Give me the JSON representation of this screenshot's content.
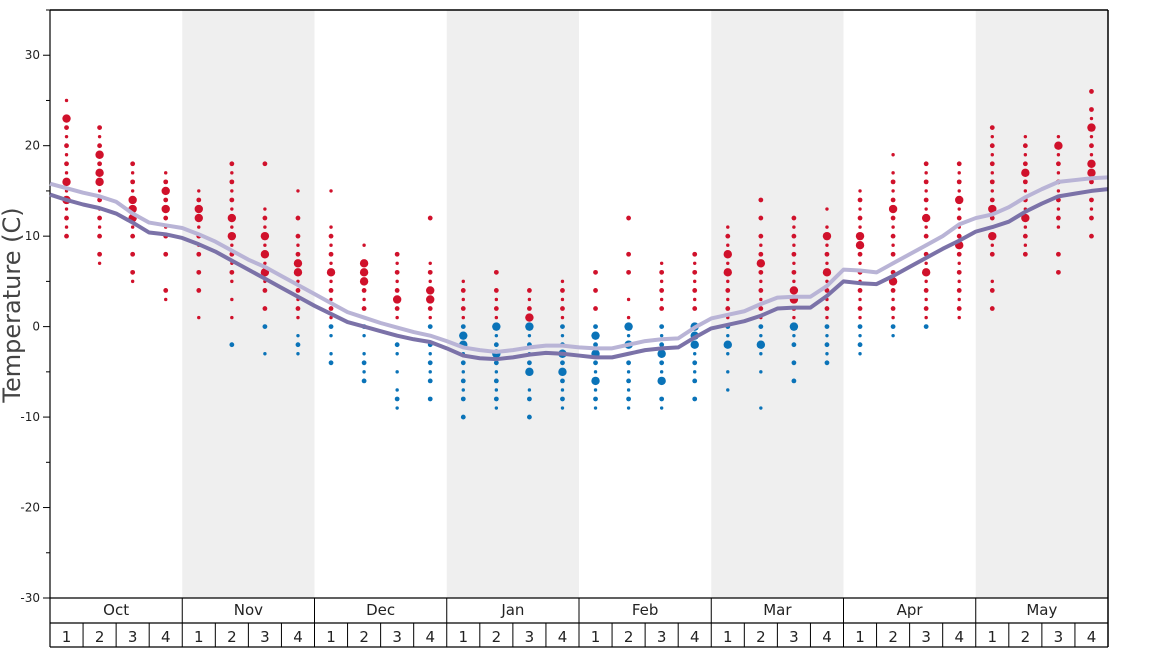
{
  "chart_data": {
    "type": "scatter",
    "ylabel": "Temperature (C)",
    "ylim": [
      -30,
      35
    ],
    "yticks": [
      "30",
      "20",
      "10",
      "0",
      "-10",
      "-20",
      "-30"
    ],
    "months": [
      "Oct",
      "Nov",
      "Dec",
      "Jan",
      "Feb",
      "Mar",
      "Apr",
      "May"
    ],
    "weeks": [
      "1",
      "2",
      "3",
      "4"
    ],
    "alternate_month_shading": true,
    "colors": {
      "warm": "#d0112b",
      "cold": "#0a73b8",
      "line_light": "#b9b4d6",
      "line_dark": "#7b72a8",
      "shade": "#efefef"
    },
    "series": [
      {
        "name": "",
        "x": [
          0.5,
          1,
          1.5,
          2,
          2.5,
          3,
          3.5,
          4,
          4.5,
          5,
          5.5,
          6,
          6.5,
          7,
          7.5,
          8,
          8.5,
          9,
          9.5,
          10,
          10.5,
          11,
          11.5,
          12,
          12.5,
          13,
          13.5,
          14,
          14.5,
          15,
          15.5,
          16,
          16.5,
          17,
          17.5,
          18,
          18.5,
          19,
          19.5,
          20,
          20.5,
          21,
          21.5,
          22,
          22.5,
          23,
          23.5,
          24,
          24.5,
          25,
          25.5,
          26,
          26.5,
          27,
          27.5,
          28,
          28.5,
          29,
          29.5,
          30,
          30.5,
          31,
          31.5,
          32,
          32.5
        ],
        "y": [
          15.8,
          15.3,
          14.8,
          14.4,
          13.8,
          12.5,
          11.5,
          11.2,
          10.9,
          10.2,
          9.4,
          8.4,
          7.4,
          6.6,
          5.6,
          4.6,
          3.6,
          2.6,
          1.6,
          1.0,
          0.4,
          -0.1,
          -0.6,
          -1.0,
          -1.6,
          -2.3,
          -2.6,
          -2.8,
          -2.6,
          -2.3,
          -2.1,
          -2.1,
          -2.3,
          -2.4,
          -2.4,
          -2.0,
          -1.6,
          -1.4,
          -1.3,
          -0.1,
          0.9,
          1.3,
          1.7,
          2.5,
          3.2,
          3.3,
          3.3,
          4.5,
          6.3,
          6.2,
          6.0,
          7.0,
          8.0,
          9.0,
          10.0,
          11.3,
          12.0,
          12.4,
          13.2,
          14.3,
          15.2,
          16.0,
          16.2,
          16.4,
          16.5
        ],
        "style": "light"
      },
      {
        "name": "",
        "x": [
          0.5,
          1,
          1.5,
          2,
          2.5,
          3,
          3.5,
          4,
          4.5,
          5,
          5.5,
          6,
          6.5,
          7,
          7.5,
          8,
          8.5,
          9,
          9.5,
          10,
          10.5,
          11,
          11.5,
          12,
          12.5,
          13,
          13.5,
          14,
          14.5,
          15,
          15.5,
          16,
          16.5,
          17,
          17.5,
          18,
          18.5,
          19,
          19.5,
          20,
          20.5,
          21,
          21.5,
          22,
          22.5,
          23,
          23.5,
          24,
          24.5,
          25,
          25.5,
          26,
          26.5,
          27,
          27.5,
          28,
          28.5,
          29,
          29.5,
          30,
          30.5,
          31,
          31.5,
          32,
          32.5
        ],
        "y": [
          14.6,
          14.0,
          13.5,
          13.1,
          12.5,
          11.5,
          10.4,
          10.2,
          9.8,
          9.1,
          8.3,
          7.3,
          6.3,
          5.3,
          4.3,
          3.3,
          2.3,
          1.4,
          0.5,
          0.0,
          -0.5,
          -1.0,
          -1.4,
          -1.7,
          -2.4,
          -3.2,
          -3.5,
          -3.6,
          -3.4,
          -3.1,
          -2.9,
          -3.0,
          -3.2,
          -3.4,
          -3.4,
          -3.0,
          -2.6,
          -2.4,
          -2.3,
          -1.2,
          -0.2,
          0.2,
          0.6,
          1.2,
          2.0,
          2.1,
          2.1,
          3.4,
          5.0,
          4.8,
          4.7,
          5.6,
          6.6,
          7.6,
          8.6,
          9.5,
          10.5,
          11.0,
          11.6,
          12.7,
          13.6,
          14.4,
          14.7,
          15.0,
          15.2
        ],
        "style": "dark"
      }
    ],
    "week_points": [
      {
        "w": 1,
        "warm": [
          10,
          11,
          12,
          13,
          14,
          15,
          16,
          17,
          18,
          19,
          20,
          21,
          22,
          23,
          25
        ],
        "cold": [],
        "big": [
          14,
          16,
          23
        ]
      },
      {
        "w": 2,
        "warm": [
          7,
          8,
          10,
          11,
          12,
          13,
          14,
          15,
          16,
          17,
          18,
          19,
          20,
          21,
          22
        ],
        "cold": [],
        "big": [
          16,
          17,
          19
        ]
      },
      {
        "w": 3,
        "warm": [
          5,
          6,
          8,
          10,
          11,
          12,
          13,
          14,
          15,
          16,
          17,
          18
        ],
        "cold": [],
        "big": [
          12,
          13,
          14
        ]
      },
      {
        "w": 4,
        "warm": [
          3,
          4,
          8,
          10,
          11,
          12,
          13,
          14,
          15,
          16,
          17
        ],
        "cold": [],
        "big": [
          13,
          15
        ]
      },
      {
        "w": 5,
        "warm": [
          1,
          4,
          6,
          8,
          9,
          10,
          11,
          12,
          13,
          14,
          15
        ],
        "cold": [],
        "big": [
          12,
          13
        ]
      },
      {
        "w": 6,
        "warm": [
          1,
          3,
          5,
          6,
          7,
          8,
          9,
          10,
          11,
          12,
          13,
          14,
          15,
          16,
          17,
          18
        ],
        "cold": [
          -2
        ],
        "big": [
          10,
          12
        ]
      },
      {
        "w": 7,
        "warm": [
          2,
          4,
          5,
          6,
          7,
          8,
          9,
          10,
          11,
          12,
          13,
          18
        ],
        "cold": [
          -3,
          0
        ],
        "big": [
          6,
          8,
          10
        ]
      },
      {
        "w": 8,
        "warm": [
          1,
          2,
          3,
          4,
          5,
          6,
          7,
          8,
          9,
          10,
          12,
          15
        ],
        "cold": [
          -3,
          -2,
          -1
        ],
        "big": [
          6,
          7
        ]
      },
      {
        "w": 9,
        "warm": [
          1,
          2,
          3,
          4,
          5,
          6,
          7,
          8,
          9,
          10,
          11,
          15
        ],
        "cold": [
          -4,
          -3,
          -1,
          0
        ],
        "big": [
          6
        ]
      },
      {
        "w": 10,
        "warm": [
          1,
          2,
          3,
          4,
          5,
          6,
          7,
          9
        ],
        "cold": [
          -6,
          -5,
          -4,
          -3,
          -1,
          0
        ],
        "big": [
          5,
          6,
          7
        ]
      },
      {
        "w": 11,
        "warm": [
          1,
          2,
          3,
          4,
          5,
          6,
          7,
          8
        ],
        "cold": [
          -9,
          -8,
          -7,
          -5,
          -3,
          -2,
          -1
        ],
        "big": [
          3
        ]
      },
      {
        "w": 12,
        "warm": [
          1,
          2,
          3,
          4,
          5,
          6,
          7,
          12
        ],
        "cold": [
          -8,
          -6,
          -5,
          -4,
          -3,
          -2,
          -1,
          0
        ],
        "big": [
          3,
          4
        ]
      },
      {
        "w": 13,
        "warm": [
          1,
          2,
          3,
          4,
          5
        ],
        "cold": [
          -10,
          -8,
          -7,
          -6,
          -5,
          -4,
          -3,
          -2,
          -1,
          0
        ],
        "big": [
          -2,
          -1
        ]
      },
      {
        "w": 14,
        "warm": [
          1,
          2,
          3,
          4,
          6
        ],
        "cold": [
          -9,
          -8,
          -7,
          -6,
          -5,
          -4,
          -3,
          -2,
          -1,
          0
        ],
        "big": [
          -3,
          0
        ]
      },
      {
        "w": 15,
        "warm": [
          1,
          2,
          3,
          4
        ],
        "cold": [
          -10,
          -8,
          -7,
          -5,
          -4,
          -3,
          -2,
          -1,
          0
        ],
        "big": [
          1,
          -5,
          0
        ]
      },
      {
        "w": 16,
        "warm": [
          1,
          2,
          3,
          4,
          5
        ],
        "cold": [
          -9,
          -8,
          -7,
          -6,
          -5,
          -4,
          -3,
          -2,
          -1,
          0
        ],
        "big": [
          -5,
          -3
        ]
      },
      {
        "w": 17,
        "warm": [
          2,
          4,
          6
        ],
        "cold": [
          -9,
          -8,
          -7,
          -6,
          -5,
          -4,
          -3,
          -2,
          -1,
          0
        ],
        "big": [
          -6,
          -3,
          -1
        ]
      },
      {
        "w": 18,
        "warm": [
          1,
          3,
          6,
          8,
          12
        ],
        "cold": [
          -9,
          -8,
          -7,
          -6,
          -5,
          -4,
          -3,
          -2,
          -1,
          0
        ],
        "big": [
          -2,
          0
        ]
      },
      {
        "w": 19,
        "warm": [
          2,
          3,
          4,
          5,
          6,
          7
        ],
        "cold": [
          -9,
          -8,
          -6,
          -5,
          -4,
          -3,
          -2,
          -1,
          0
        ],
        "big": [
          -6,
          -3
        ]
      },
      {
        "w": 20,
        "warm": [
          2,
          3,
          4,
          5,
          6,
          7,
          8
        ],
        "cold": [
          -8,
          -6,
          -5,
          -4,
          -3,
          -2,
          -1,
          0
        ],
        "big": [
          -2,
          -1,
          0
        ]
      },
      {
        "w": 21,
        "warm": [
          1,
          2,
          3,
          4,
          5,
          6,
          7,
          8,
          9,
          10,
          11
        ],
        "cold": [
          -7,
          -5,
          -3,
          -2,
          -1,
          0
        ],
        "big": [
          -2,
          6,
          8
        ]
      },
      {
        "w": 22,
        "warm": [
          1,
          2,
          3,
          4,
          5,
          6,
          7,
          8,
          9,
          10,
          12,
          14
        ],
        "cold": [
          -9,
          -5,
          -3,
          -2,
          -1,
          0
        ],
        "big": [
          -2,
          7
        ]
      },
      {
        "w": 23,
        "warm": [
          1,
          2,
          3,
          4,
          5,
          6,
          7,
          8,
          9,
          10,
          11,
          12
        ],
        "cold": [
          -6,
          -4,
          -2,
          -1,
          0
        ],
        "big": [
          0,
          3,
          4
        ]
      },
      {
        "w": 24,
        "warm": [
          1,
          2,
          3,
          4,
          5,
          6,
          7,
          8,
          9,
          10,
          11,
          13
        ],
        "cold": [
          -4,
          -3,
          -2,
          -1,
          0
        ],
        "big": [
          6,
          10
        ]
      },
      {
        "w": 25,
        "warm": [
          1,
          2,
          3,
          4,
          5,
          6,
          7,
          8,
          9,
          10,
          11,
          12,
          13,
          14,
          15
        ],
        "cold": [
          -3,
          -2,
          -1,
          0
        ],
        "big": [
          9,
          10
        ]
      },
      {
        "w": 26,
        "warm": [
          1,
          2,
          3,
          4,
          5,
          6,
          7,
          8,
          9,
          10,
          11,
          12,
          13,
          14,
          15,
          16,
          17,
          19
        ],
        "cold": [
          -1,
          0
        ],
        "big": [
          5,
          13
        ]
      },
      {
        "w": 27,
        "warm": [
          1,
          2,
          3,
          4,
          5,
          6,
          7,
          8,
          9,
          10,
          11,
          12,
          13,
          14,
          15,
          16,
          17,
          18
        ],
        "cold": [
          0
        ],
        "big": [
          6,
          12
        ]
      },
      {
        "w": 28,
        "warm": [
          1,
          2,
          3,
          4,
          5,
          6,
          7,
          8,
          9,
          10,
          11,
          12,
          13,
          14,
          15,
          16,
          17,
          18
        ],
        "cold": [],
        "big": [
          9,
          14
        ]
      },
      {
        "w": 29,
        "warm": [
          2,
          4,
          5,
          8,
          9,
          10,
          11,
          12,
          13,
          14,
          15,
          16,
          17,
          18,
          19,
          20,
          21,
          22
        ],
        "cold": [],
        "big": [
          13,
          10
        ]
      },
      {
        "w": 30,
        "warm": [
          8,
          9,
          10,
          11,
          12,
          13,
          14,
          15,
          16,
          17,
          18,
          19,
          20,
          21
        ],
        "cold": [],
        "big": [
          12,
          17
        ]
      },
      {
        "w": 31,
        "warm": [
          6,
          8,
          11,
          12,
          13,
          14,
          15,
          16,
          17,
          18,
          19,
          20,
          21
        ],
        "cold": [],
        "big": [
          20
        ]
      },
      {
        "w": 32,
        "warm": [
          10,
          12,
          13,
          14,
          15,
          16,
          17,
          18,
          19,
          20,
          21,
          22,
          23,
          24,
          26
        ],
        "cold": [],
        "big": [
          17,
          18,
          22
        ]
      }
    ]
  }
}
